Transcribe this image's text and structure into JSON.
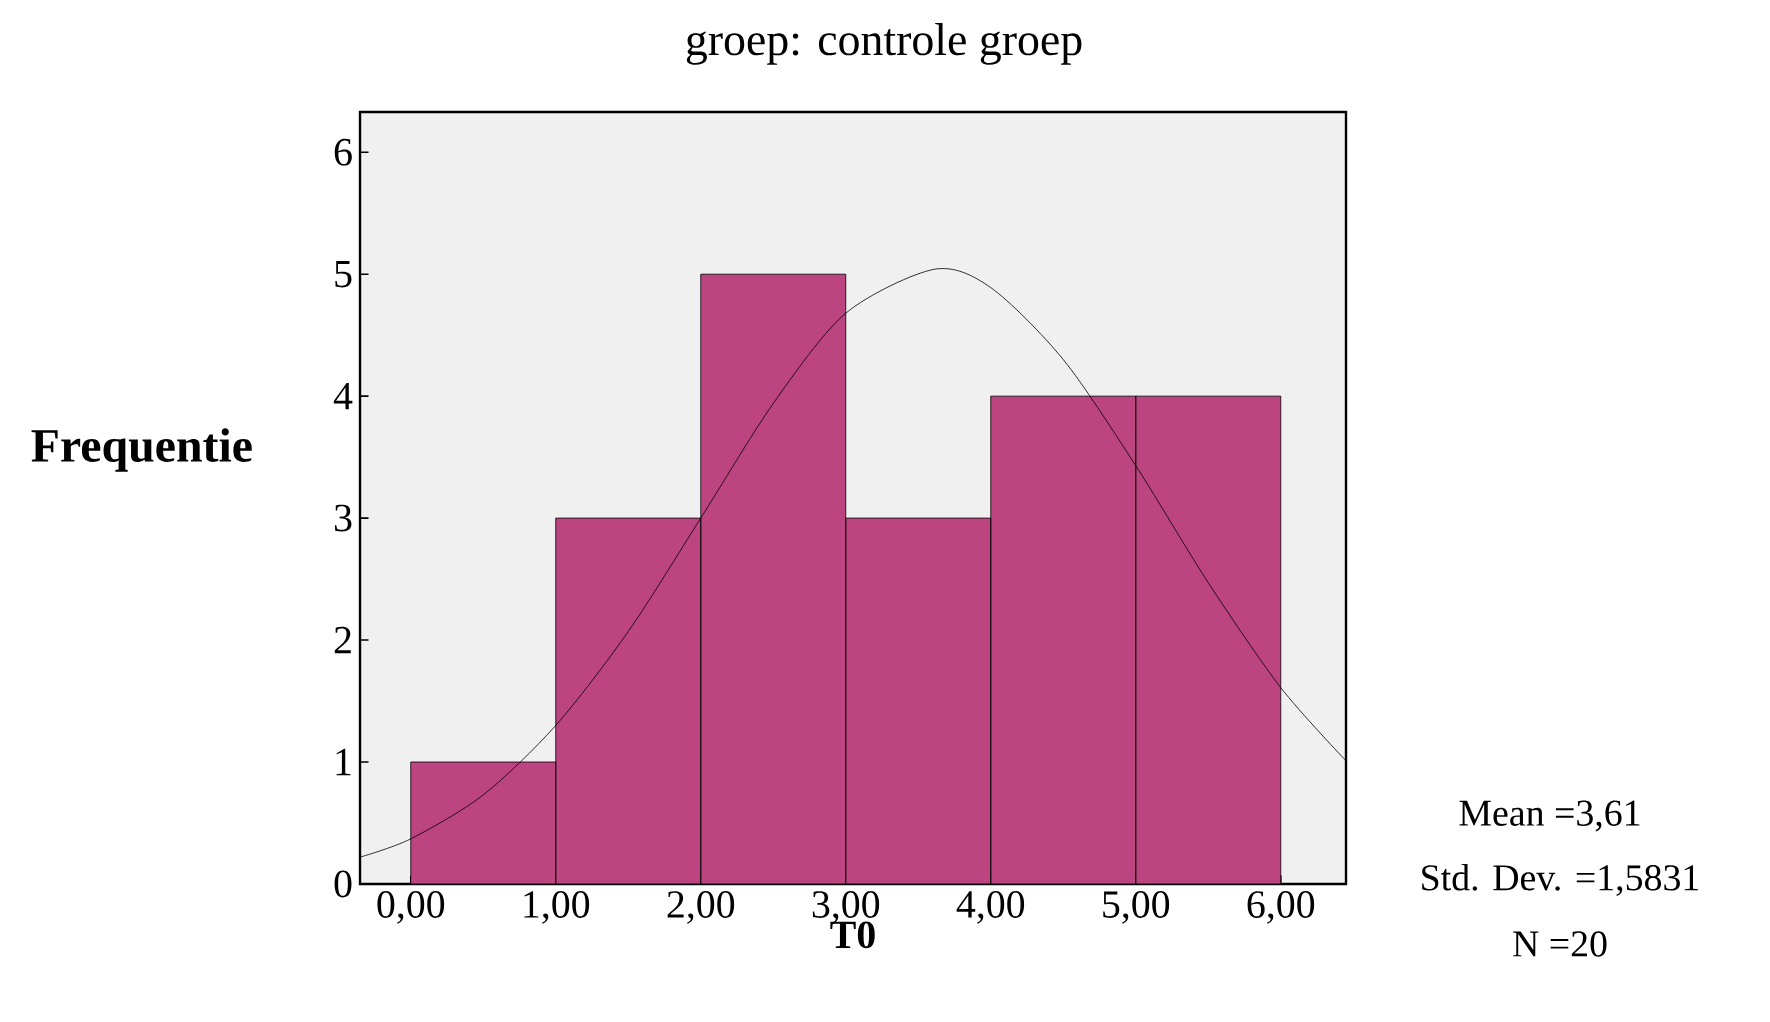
{
  "chart_data": {
    "type": "histogram",
    "title": "groep: controle groep",
    "xlabel": "T0",
    "ylabel": "Frequentie",
    "annotations": [
      "Mean =3,61",
      "Std. Dev. =1,5831",
      "N =20"
    ],
    "xlim": [
      -0.35,
      6.45
    ],
    "ylim": [
      0,
      6.33
    ],
    "xticks": [
      {
        "value": 0,
        "label": "0,00"
      },
      {
        "value": 1,
        "label": "1,00"
      },
      {
        "value": 2,
        "label": "2,00"
      },
      {
        "value": 3,
        "label": "3,00"
      },
      {
        "value": 4,
        "label": "4,00"
      },
      {
        "value": 5,
        "label": "5,00"
      },
      {
        "value": 6,
        "label": "6,00"
      }
    ],
    "yticks": [
      0,
      1,
      2,
      3,
      4,
      5,
      6
    ],
    "series": [
      {
        "type": "histogram",
        "color": "#bc4480",
        "bins": [
          0,
          1,
          2,
          3,
          4,
          5,
          6
        ],
        "values": [
          1,
          3,
          5,
          3,
          4,
          4
        ]
      },
      {
        "type": "line",
        "color": "#000000",
        "x": [
          -0.35,
          0,
          0.5,
          1,
          1.5,
          2,
          2.5,
          3,
          3.61,
          4,
          4.5,
          5,
          5.5,
          6,
          6.45
        ],
        "values": [
          0.22,
          0.37,
          0.73,
          1.3,
          2.07,
          3.0,
          3.94,
          4.68,
          5.04,
          4.89,
          4.3,
          3.43,
          2.47,
          1.61,
          1.01
        ]
      }
    ]
  }
}
